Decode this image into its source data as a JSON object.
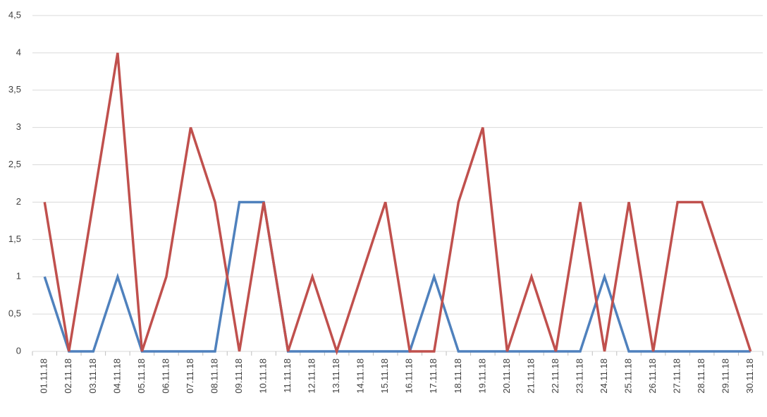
{
  "chart_data": {
    "type": "line",
    "categories": [
      "01.11.18",
      "02.11.18",
      "03.11.18",
      "04.11.18",
      "05.11.18",
      "06.11.18",
      "07.11.18",
      "08.11.18",
      "09.11.18",
      "10.11.18",
      "11.11.18",
      "12.11.18",
      "13.11.18",
      "14.11.18",
      "15.11.18",
      "16.11.18",
      "17.11.18",
      "18.11.18",
      "19.11.18",
      "20.11.18",
      "21.11.18",
      "22.11.18",
      "23.11.18",
      "24.11.18",
      "25.11.18",
      "26.11.18",
      "27.11.18",
      "28.11.18",
      "29.11.18",
      "30.11.18"
    ],
    "series": [
      {
        "color": "#4f81bd",
        "values": [
          1,
          0,
          0,
          1,
          0,
          0,
          0,
          0,
          2,
          2,
          0,
          0,
          0,
          0,
          0,
          0,
          1,
          0,
          0,
          0,
          0,
          0,
          0,
          1,
          0,
          0,
          0,
          0,
          0,
          0
        ]
      },
      {
        "color": "#c0504d",
        "values": [
          2,
          0,
          2,
          4,
          0,
          1,
          3,
          2,
          0,
          2,
          0,
          1,
          0,
          1,
          2,
          0,
          0,
          2,
          3,
          0,
          1,
          0,
          2,
          0,
          2,
          0,
          2,
          2,
          1,
          0
        ]
      }
    ],
    "ylim": [
      0,
      4.5
    ],
    "yticks": [
      0,
      {
        "value": 0.5,
        "label": "0,5"
      },
      1,
      {
        "value": 1.5,
        "label": "1,5"
      },
      2,
      {
        "value": 2.5,
        "label": "2,5"
      },
      3,
      {
        "value": 3.5,
        "label": "3,5"
      },
      4,
      {
        "value": 4.5,
        "label": "4,5"
      }
    ],
    "grid": true
  }
}
